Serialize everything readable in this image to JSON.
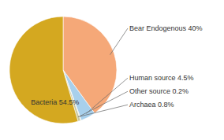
{
  "chart_data": {
    "type": "pie",
    "categories": [
      "Bear Endogenous",
      "Human source",
      "Other source",
      "Archaea",
      "Bacteria"
    ],
    "values": [
      40.0,
      4.5,
      0.2,
      0.8,
      54.5
    ],
    "value_labels": [
      "Bear Endogenous 40%",
      "Human source 4.5%",
      "Other source 0.2%",
      "Archaea 0.8%",
      "Bacteria 54.5%"
    ],
    "colors": [
      "#F5A878",
      "#A8D0EC",
      "#D8D8D4",
      "#C8C8A0",
      "#D4A820"
    ],
    "data_labels": true
  }
}
